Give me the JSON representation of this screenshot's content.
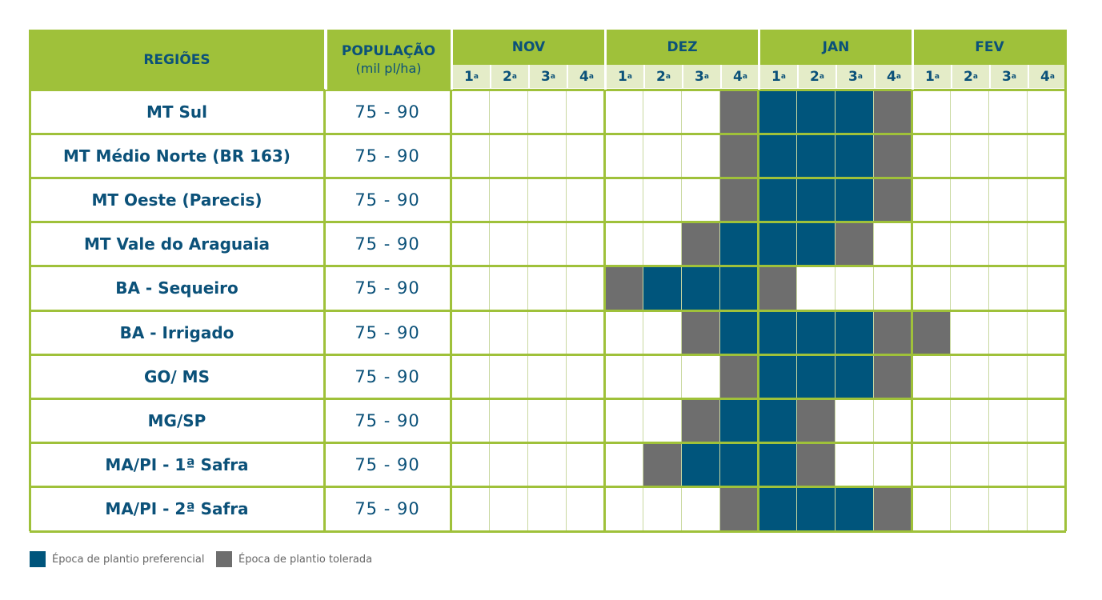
{
  "header": {
    "regions": "REGIÕES",
    "population": "POPULAÇÃO",
    "population_unit": "(mil pl/ha)",
    "months": [
      "NOV",
      "DEZ",
      "JAN",
      "FEV"
    ],
    "weeks": [
      "1",
      "2",
      "3",
      "4"
    ],
    "week_suffix": "a"
  },
  "rows": [
    {
      "region": "MT Sul",
      "population": "75 - 90",
      "weeks": "-------TPPPT----"
    },
    {
      "region": "MT Médio Norte (BR 163)",
      "population": "75 - 90",
      "weeks": "-------TPPPT----"
    },
    {
      "region": "MT Oeste (Parecis)",
      "population": "75 - 90",
      "weeks": "-------TPPPT----"
    },
    {
      "region": "MT Vale do Araguaia",
      "population": "75 - 90",
      "weeks": "------TPPPT-----"
    },
    {
      "region": "BA - Sequeiro",
      "population": "75 - 90",
      "weeks": "----TPPPT-------"
    },
    {
      "region": "BA - Irrigado",
      "population": "75 - 90",
      "weeks": "------TPPPPTT---"
    },
    {
      "region": "GO/ MS",
      "population": "75 - 90",
      "weeks": "-------TPPPT----"
    },
    {
      "region": "MG/SP",
      "population": "75 - 90",
      "weeks": "------TPPT------"
    },
    {
      "region": "MA/PI - 1ª Safra",
      "population": "75 - 90",
      "weeks": "-----TPPPT------"
    },
    {
      "region": "MA/PI - 2ª Safra",
      "population": "75 - 90",
      "weeks": "-------TPPPT----"
    }
  ],
  "legend": {
    "preferred": "Época de plantio preferencial",
    "tolerated": "Época de plantio tolerada"
  },
  "colors": {
    "green": "#9fc13a",
    "preferred": "#00557c",
    "tolerated": "#6e6e6e",
    "text": "#0b5179"
  }
}
